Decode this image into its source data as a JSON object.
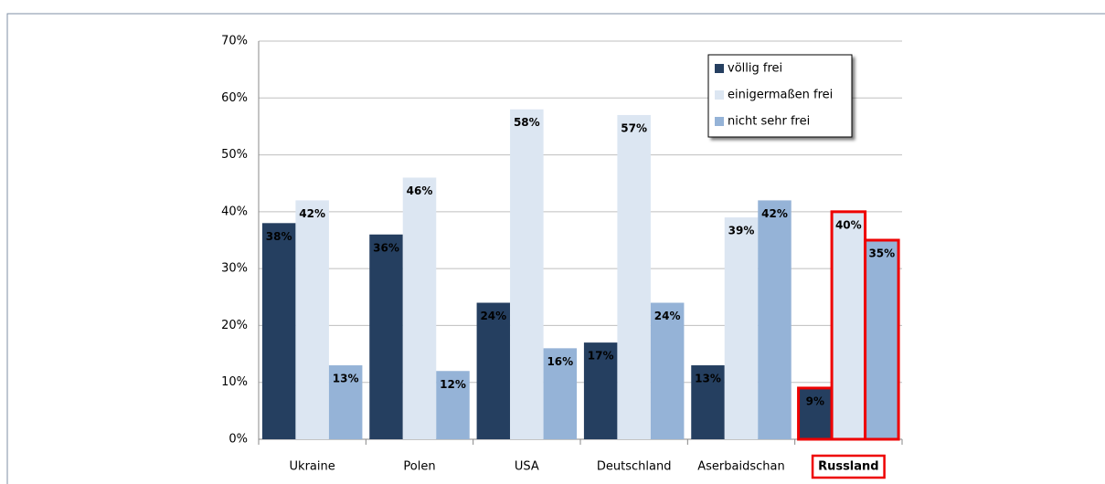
{
  "chart_data": {
    "type": "bar",
    "categories": [
      "Ukraine",
      "Polen",
      "USA",
      "Deutschland",
      "Aserbaidschan",
      "Russland"
    ],
    "series": [
      {
        "name": "völlig frei",
        "color": "#253f60",
        "values": [
          38,
          36,
          24,
          17,
          13,
          9
        ],
        "value_labels": [
          "38%",
          "36%",
          "24%",
          "17%",
          "13%",
          "9%"
        ]
      },
      {
        "name": "einigermaßen frei",
        "color": "#dce6f2",
        "values": [
          42,
          46,
          58,
          57,
          39,
          40
        ],
        "value_labels": [
          "42%",
          "46%",
          "58%",
          "57%",
          "39%",
          "40%"
        ]
      },
      {
        "name": "nicht sehr frei",
        "color": "#95b3d7",
        "values": [
          13,
          12,
          16,
          24,
          42,
          35
        ],
        "value_labels": [
          "13%",
          "12%",
          "16%",
          "24%",
          "42%",
          "35%"
        ]
      }
    ],
    "ylim": [
      0,
      70
    ],
    "yticks": [
      {
        "value": 0,
        "label": "0%"
      },
      {
        "value": 10,
        "label": "10%"
      },
      {
        "value": 20,
        "label": "20%"
      },
      {
        "value": 30,
        "label": "30%"
      },
      {
        "value": 40,
        "label": "40%"
      },
      {
        "value": 50,
        "label": "50%"
      },
      {
        "value": 60,
        "label": "60%"
      },
      {
        "value": 70,
        "label": "70%"
      }
    ],
    "grid": true,
    "legend": "upper right",
    "highlight_index": 5
  }
}
